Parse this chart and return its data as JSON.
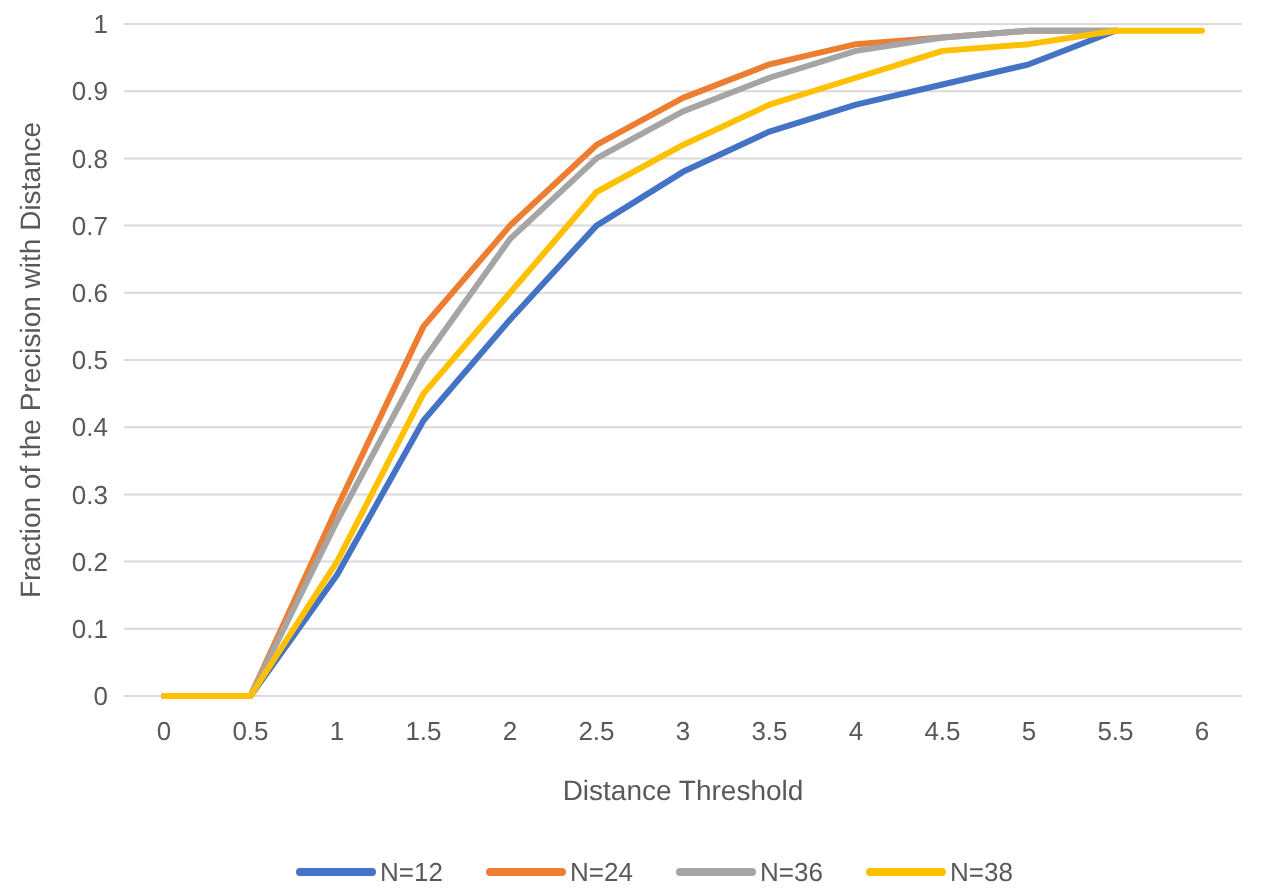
{
  "chart_data": {
    "type": "line",
    "xlabel": "Distance Threshold",
    "ylabel": "Fraction of the Precision with Distance",
    "categories": [
      "0",
      "0.5",
      "1",
      "1.5",
      "2",
      "2.5",
      "3",
      "3.5",
      "4",
      "4.5",
      "5",
      "5.5",
      "6"
    ],
    "series": [
      {
        "name": "N=12",
        "color": "#4472c4",
        "values": [
          0,
          0,
          0.18,
          0.41,
          0.56,
          0.7,
          0.78,
          0.84,
          0.88,
          0.91,
          0.94,
          0.99,
          null
        ]
      },
      {
        "name": "N=24",
        "color": "#ed7d31",
        "values": [
          0,
          0,
          0.28,
          0.55,
          0.7,
          0.82,
          0.89,
          0.94,
          0.97,
          0.98,
          0.99,
          0.99,
          null
        ]
      },
      {
        "name": "N=36",
        "color": "#a5a5a5",
        "values": [
          0,
          0,
          0.26,
          0.5,
          0.68,
          0.8,
          0.87,
          0.92,
          0.96,
          0.98,
          0.99,
          0.99,
          null
        ]
      },
      {
        "name": "N=38",
        "color": "#ffc000",
        "values": [
          0,
          0,
          0.2,
          0.45,
          0.6,
          0.75,
          0.82,
          0.88,
          0.92,
          0.96,
          0.97,
          0.99,
          0.99
        ]
      }
    ],
    "ylim": [
      0,
      1
    ],
    "yticks": [
      0,
      0.1,
      0.2,
      0.3,
      0.4,
      0.5,
      0.6,
      0.7,
      0.8,
      0.9,
      1
    ],
    "grid": "y",
    "legend": "bottom",
    "marker": "none",
    "line_style": "solid"
  }
}
